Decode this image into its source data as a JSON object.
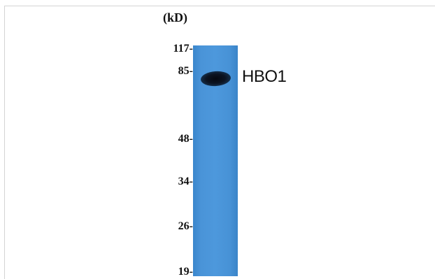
{
  "blot": {
    "unit_label": "(kD)",
    "band_label": "HBO1",
    "markers": [
      {
        "label": "117-"
      },
      {
        "label": "85-"
      },
      {
        "label": "48-"
      },
      {
        "label": "34-"
      },
      {
        "label": "26-"
      },
      {
        "label": "19-"
      }
    ]
  },
  "colors": {
    "lane": "#4a94d8",
    "band": "#0c1422"
  }
}
